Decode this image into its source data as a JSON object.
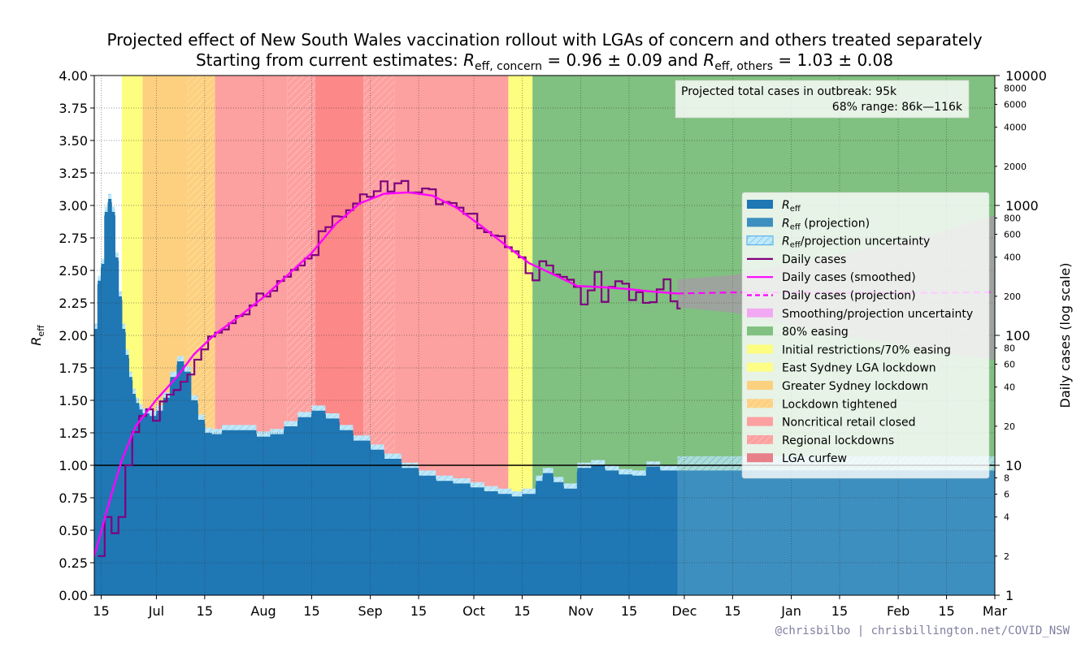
{
  "chart_data": {
    "type": "line",
    "title": "Projected effect of New South Wales vaccination rollout with LGAs of concern and others treated separately",
    "subtitle": {
      "prefix": "Starting from current estimates: ",
      "r_symbol": "R",
      "concern_sub": "eff, concern",
      "concern_value": " = 0.96 ± 0.09 and ",
      "others_sub": "eff, others",
      "others_value": " = 1.03 ± 0.08"
    },
    "ylabel": {
      "symbol": "R",
      "sub": "eff"
    },
    "ylabel_right": "Daily cases (log scale)",
    "ylim": [
      0,
      4
    ],
    "y_ticks": [
      "0.00",
      "0.25",
      "0.50",
      "0.75",
      "1.00",
      "1.25",
      "1.50",
      "1.75",
      "2.00",
      "2.25",
      "2.50",
      "2.75",
      "3.00",
      "3.25",
      "3.50",
      "3.75",
      "4.00"
    ],
    "y2lim": [
      1,
      10000
    ],
    "y2_major_ticks": [
      "1",
      "10",
      "100",
      "1000",
      "10000"
    ],
    "y2_minor_ticks": [
      "2",
      "4",
      "6",
      "8",
      "20",
      "40",
      "60",
      "80",
      "200",
      "400",
      "600",
      "800",
      "2000",
      "4000",
      "6000",
      "8000"
    ],
    "x_start_date": "2021-06-13",
    "x_ticks": [
      {
        "label": "15",
        "date": "2021-06-15"
      },
      {
        "label": "Jul",
        "date": "2021-07-01"
      },
      {
        "label": "15",
        "date": "2021-07-15"
      },
      {
        "label": "Aug",
        "date": "2021-08-01"
      },
      {
        "label": "15",
        "date": "2021-08-15"
      },
      {
        "label": "Sep",
        "date": "2021-09-01"
      },
      {
        "label": "15",
        "date": "2021-09-15"
      },
      {
        "label": "Oct",
        "date": "2021-10-01"
      },
      {
        "label": "15",
        "date": "2021-10-15"
      },
      {
        "label": "Nov",
        "date": "2021-11-01"
      },
      {
        "label": "15",
        "date": "2021-11-15"
      },
      {
        "label": "Dec",
        "date": "2021-12-01"
      },
      {
        "label": "15",
        "date": "2021-12-15"
      },
      {
        "label": "Jan",
        "date": "2022-01-01"
      },
      {
        "label": "15",
        "date": "2022-01-15"
      },
      {
        "label": "Feb",
        "date": "2022-02-01"
      },
      {
        "label": "15",
        "date": "2022-02-15"
      },
      {
        "label": "Mar",
        "date": "2022-03-01"
      }
    ],
    "x_end_date": "2022-03-01",
    "grid": true,
    "reference_line": 1.0,
    "restriction_periods": [
      {
        "name": "Initial restrictions/70% easing",
        "color": "#fdfd80",
        "start": "2021-06-21",
        "end": "2021-06-27"
      },
      {
        "name": "Greater Sydney lockdown",
        "color": "#fdd080",
        "start": "2021-06-27",
        "end": "2021-07-10"
      },
      {
        "name": "Lockdown tightened",
        "color": "#fdd080",
        "hatched": true,
        "start": "2021-07-10",
        "end": "2021-07-18"
      },
      {
        "name": "Noncritical retail closed",
        "color": "#fda0a0",
        "start": "2021-07-18",
        "end": "2021-08-08"
      },
      {
        "name": "Regional lockdowns",
        "color": "#fda0a0",
        "hatched": true,
        "start": "2021-08-08",
        "end": "2021-08-16"
      },
      {
        "name": "LGA curfew",
        "color": "#fd8888",
        "start": "2021-08-16",
        "end": "2021-08-30"
      },
      {
        "name": "Regional lockdowns",
        "color": "#fda0a0",
        "hatched": true,
        "start": "2021-08-30",
        "end": "2021-09-08"
      },
      {
        "name": "Noncritical retail closed",
        "color": "#fda0a0",
        "start": "2021-09-08",
        "end": "2021-10-11"
      },
      {
        "name": "Initial restrictions/70% easing",
        "color": "#fdfd80",
        "start": "2021-10-11",
        "end": "2021-10-18"
      },
      {
        "name": "80% easing",
        "color": "#80c080",
        "start": "2021-10-18",
        "end": "2022-03-01"
      }
    ],
    "reff": [
      [
        "2021-06-13",
        2.05
      ],
      [
        "2021-06-14",
        2.42
      ],
      [
        "2021-06-15",
        2.55
      ],
      [
        "2021-06-16",
        2.95
      ],
      [
        "2021-06-17",
        3.05
      ],
      [
        "2021-06-18",
        2.95
      ],
      [
        "2021-06-19",
        2.6
      ],
      [
        "2021-06-20",
        2.3
      ],
      [
        "2021-06-21",
        2.05
      ],
      [
        "2021-06-22",
        1.85
      ],
      [
        "2021-06-23",
        1.68
      ],
      [
        "2021-06-24",
        1.55
      ],
      [
        "2021-06-25",
        1.48
      ],
      [
        "2021-06-26",
        1.43
      ],
      [
        "2021-06-27",
        1.4
      ],
      [
        "2021-06-29",
        1.38
      ],
      [
        "2021-07-01",
        1.42
      ],
      [
        "2021-07-03",
        1.52
      ],
      [
        "2021-07-05",
        1.68
      ],
      [
        "2021-07-07",
        1.8
      ],
      [
        "2021-07-09",
        1.72
      ],
      [
        "2021-07-11",
        1.5
      ],
      [
        "2021-07-13",
        1.35
      ],
      [
        "2021-07-15",
        1.25
      ],
      [
        "2021-07-17",
        1.24
      ],
      [
        "2021-07-20",
        1.27
      ],
      [
        "2021-07-25",
        1.27
      ],
      [
        "2021-07-30",
        1.22
      ],
      [
        "2021-08-03",
        1.24
      ],
      [
        "2021-08-07",
        1.3
      ],
      [
        "2021-08-11",
        1.37
      ],
      [
        "2021-08-15",
        1.42
      ],
      [
        "2021-08-19",
        1.36
      ],
      [
        "2021-08-23",
        1.27
      ],
      [
        "2021-08-27",
        1.19
      ],
      [
        "2021-09-01",
        1.12
      ],
      [
        "2021-09-05",
        1.05
      ],
      [
        "2021-09-10",
        0.98
      ],
      [
        "2021-09-15",
        0.92
      ],
      [
        "2021-09-20",
        0.88
      ],
      [
        "2021-09-25",
        0.86
      ],
      [
        "2021-09-30",
        0.83
      ],
      [
        "2021-10-04",
        0.8
      ],
      [
        "2021-10-08",
        0.78
      ],
      [
        "2021-10-12",
        0.76
      ],
      [
        "2021-10-15",
        0.78
      ],
      [
        "2021-10-19",
        0.88
      ],
      [
        "2021-10-21",
        0.94
      ],
      [
        "2021-10-24",
        0.87
      ],
      [
        "2021-10-27",
        0.82
      ],
      [
        "2021-10-31",
        0.98
      ],
      [
        "2021-11-04",
        1.0
      ],
      [
        "2021-11-08",
        0.96
      ],
      [
        "2021-11-12",
        0.93
      ],
      [
        "2021-11-16",
        0.92
      ],
      [
        "2021-11-20",
        0.99
      ],
      [
        "2021-11-24",
        0.96
      ],
      [
        "2021-11-29",
        0.93
      ]
    ],
    "reff_projection": {
      "start": "2021-11-29",
      "end": "2022-03-01",
      "value": 0.96,
      "band": [
        0.94,
        1.07
      ]
    },
    "daily_cases": [
      [
        "2021-06-14",
        2
      ],
      [
        "2021-06-16",
        4
      ],
      [
        "2021-06-18",
        3
      ],
      [
        "2021-06-20",
        4
      ],
      [
        "2021-06-22",
        10
      ],
      [
        "2021-06-24",
        18
      ],
      [
        "2021-06-26",
        24
      ],
      [
        "2021-06-28",
        27
      ],
      [
        "2021-06-30",
        22
      ],
      [
        "2021-07-02",
        31
      ],
      [
        "2021-07-04",
        35
      ],
      [
        "2021-07-06",
        38
      ],
      [
        "2021-07-08",
        44
      ],
      [
        "2021-07-10",
        50
      ],
      [
        "2021-07-12",
        65
      ],
      [
        "2021-07-14",
        78
      ],
      [
        "2021-07-16",
        98
      ],
      [
        "2021-07-18",
        105
      ],
      [
        "2021-07-20",
        111
      ],
      [
        "2021-07-22",
        124
      ],
      [
        "2021-07-24",
        141
      ],
      [
        "2021-07-26",
        145
      ],
      [
        "2021-07-28",
        170
      ],
      [
        "2021-07-30",
        210
      ],
      [
        "2021-08-01",
        199
      ],
      [
        "2021-08-03",
        220
      ],
      [
        "2021-08-05",
        262
      ],
      [
        "2021-08-07",
        283
      ],
      [
        "2021-08-09",
        319
      ],
      [
        "2021-08-11",
        345
      ],
      [
        "2021-08-13",
        390
      ],
      [
        "2021-08-15",
        415
      ],
      [
        "2021-08-17",
        633
      ],
      [
        "2021-08-19",
        681
      ],
      [
        "2021-08-21",
        825
      ],
      [
        "2021-08-23",
        818
      ],
      [
        "2021-08-25",
        919
      ],
      [
        "2021-08-27",
        1035
      ],
      [
        "2021-08-29",
        1218
      ],
      [
        "2021-08-31",
        1164
      ],
      [
        "2021-09-02",
        1288
      ],
      [
        "2021-09-04",
        1533
      ],
      [
        "2021-09-06",
        1281
      ],
      [
        "2021-09-08",
        1480
      ],
      [
        "2021-09-10",
        1542
      ],
      [
        "2021-09-12",
        1257
      ],
      [
        "2021-09-14",
        1259
      ],
      [
        "2021-09-16",
        1351
      ],
      [
        "2021-09-18",
        1331
      ],
      [
        "2021-09-20",
        1022
      ],
      [
        "2021-09-22",
        1063
      ],
      [
        "2021-09-24",
        1043
      ],
      [
        "2021-09-26",
        961
      ],
      [
        "2021-09-28",
        863
      ],
      [
        "2021-09-30",
        864
      ],
      [
        "2021-10-02",
        667
      ],
      [
        "2021-10-04",
        623
      ],
      [
        "2021-10-06",
        587
      ],
      [
        "2021-10-08",
        580
      ],
      [
        "2021-10-10",
        477
      ],
      [
        "2021-10-12",
        444
      ],
      [
        "2021-10-14",
        399
      ],
      [
        "2021-10-16",
        301
      ],
      [
        "2021-10-18",
        265
      ],
      [
        "2021-10-20",
        372
      ],
      [
        "2021-10-22",
        345
      ],
      [
        "2021-10-24",
        294
      ],
      [
        "2021-10-26",
        282
      ],
      [
        "2021-10-28",
        268
      ],
      [
        "2021-10-30",
        236
      ],
      [
        "2021-11-01",
        173
      ],
      [
        "2021-11-03",
        222
      ],
      [
        "2021-11-05",
        308
      ],
      [
        "2021-11-07",
        181
      ],
      [
        "2021-11-09",
        236
      ],
      [
        "2021-11-11",
        261
      ],
      [
        "2021-11-13",
        250
      ],
      [
        "2021-11-15",
        187
      ],
      [
        "2021-11-17",
        215
      ],
      [
        "2021-11-19",
        178
      ],
      [
        "2021-11-21",
        180
      ],
      [
        "2021-11-23",
        226
      ],
      [
        "2021-11-25",
        270
      ],
      [
        "2021-11-27",
        183
      ],
      [
        "2021-11-29",
        161
      ]
    ],
    "daily_cases_smoothed": [
      [
        "2021-06-13",
        2
      ],
      [
        "2021-06-18",
        6
      ],
      [
        "2021-06-21",
        11
      ],
      [
        "2021-06-25",
        20
      ],
      [
        "2021-07-01",
        32
      ],
      [
        "2021-07-07",
        48
      ],
      [
        "2021-07-12",
        72
      ],
      [
        "2021-07-18",
        102
      ],
      [
        "2021-07-25",
        140
      ],
      [
        "2021-08-01",
        196
      ],
      [
        "2021-08-08",
        290
      ],
      [
        "2021-08-15",
        430
      ],
      [
        "2021-08-22",
        720
      ],
      [
        "2021-08-29",
        1040
      ],
      [
        "2021-09-05",
        1230
      ],
      [
        "2021-09-12",
        1260
      ],
      [
        "2021-09-19",
        1190
      ],
      [
        "2021-09-26",
        960
      ],
      [
        "2021-10-03",
        700
      ],
      [
        "2021-10-10",
        500
      ],
      [
        "2021-10-17",
        360
      ],
      [
        "2021-10-24",
        295
      ],
      [
        "2021-10-31",
        240
      ],
      [
        "2021-11-07",
        235
      ],
      [
        "2021-11-14",
        228
      ],
      [
        "2021-11-21",
        218
      ],
      [
        "2021-11-29",
        210
      ]
    ],
    "daily_cases_projection": [
      [
        "2021-11-29",
        210
      ],
      [
        "2021-12-15",
        214
      ],
      [
        "2022-01-01",
        214
      ],
      [
        "2022-01-15",
        213
      ],
      [
        "2022-02-01",
        212
      ],
      [
        "2022-02-15",
        213
      ],
      [
        "2022-03-01",
        215
      ]
    ],
    "projection_band": [
      [
        "2021-11-29",
        165,
        270
      ],
      [
        "2021-12-15",
        150,
        290
      ],
      [
        "2022-01-01",
        120,
        360
      ],
      [
        "2022-01-15",
        100,
        420
      ],
      [
        "2022-02-01",
        85,
        520
      ],
      [
        "2022-02-15",
        72,
        640
      ],
      [
        "2022-03-01",
        65,
        840
      ]
    ],
    "legend_position": "right",
    "legend": [
      {
        "key": "reff",
        "label": "",
        "sym": "R",
        "sub": "eff",
        "tail": "",
        "swatch": "patch",
        "color": "#1f77b4"
      },
      {
        "key": "reff_proj",
        "label": "",
        "sym": "R",
        "sub": "eff",
        "tail": " (projection)",
        "swatch": "patch",
        "color": "#3d8fbf"
      },
      {
        "key": "reff_unc",
        "label": "",
        "sym": "R",
        "sub": "eff",
        "tail": "/projection uncertainty",
        "swatch": "hatch",
        "color": "#bfe9f9"
      },
      {
        "key": "cases",
        "label": "Daily cases",
        "swatch": "line",
        "color": "#800080"
      },
      {
        "key": "cases_smooth",
        "label": "Daily cases (smoothed)",
        "swatch": "line",
        "color": "#ff00ff"
      },
      {
        "key": "cases_proj",
        "label": "Daily cases (projection)",
        "swatch": "dash",
        "color": "#ff00ff"
      },
      {
        "key": "smooth_unc",
        "label": "Smoothing/projection uncertainty",
        "swatch": "patch",
        "color": "#f2a8f2"
      },
      {
        "key": "easing80",
        "label": "80% easing",
        "swatch": "patch",
        "color": "#80c080"
      },
      {
        "key": "initial",
        "label": "Initial restrictions/70% easing",
        "swatch": "patch",
        "color": "#fdfd80"
      },
      {
        "key": "east_sydney",
        "label": "East Sydney LGA lockdown",
        "swatch": "hatch",
        "color": "#fdfd80"
      },
      {
        "key": "greater_sydney",
        "label": "Greater Sydney lockdown",
        "swatch": "patch",
        "color": "#fdd080"
      },
      {
        "key": "tightened",
        "label": "Lockdown tightened",
        "swatch": "hatch",
        "color": "#fdd080"
      },
      {
        "key": "retail",
        "label": "Noncritical retail closed",
        "swatch": "patch",
        "color": "#fda0a0"
      },
      {
        "key": "regional",
        "label": "Regional lockdowns",
        "swatch": "hatch",
        "color": "#fda0a0"
      },
      {
        "key": "curfew",
        "label": "LGA curfew",
        "swatch": "patch",
        "color": "#e8808a"
      }
    ],
    "projection_box": {
      "line1": "Projected total cases in outbreak:  95k",
      "line2": "68% range:  86k—116k"
    }
  },
  "credit": "@chrisbilbo | chrisbillington.net/COVID_NSW"
}
